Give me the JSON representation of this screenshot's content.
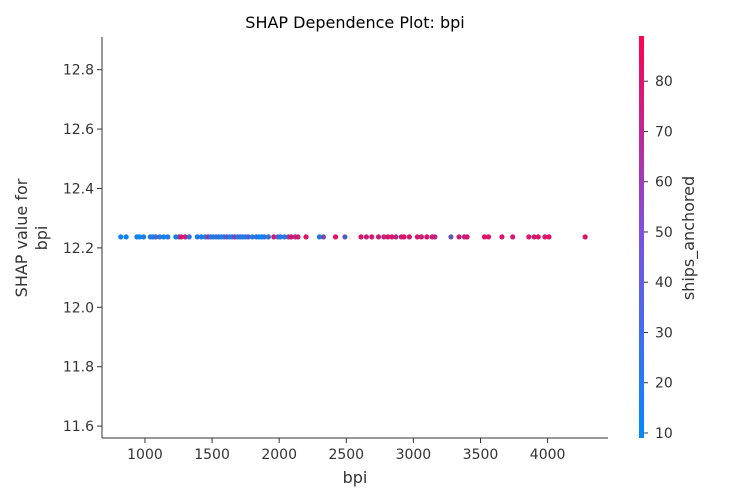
{
  "chart_data": {
    "type": "scatter",
    "title": "SHAP Dependence Plot: bpi",
    "xlabel": "bpi",
    "ylabel": [
      "SHAP value for",
      "bpi"
    ],
    "xlim": [
      680,
      4450
    ],
    "ylim": [
      11.56,
      12.91
    ],
    "xticks": [
      1000,
      1500,
      2000,
      2500,
      3000,
      3500,
      4000
    ],
    "yticks": [
      11.6,
      11.8,
      12.0,
      12.2,
      12.4,
      12.6,
      12.8
    ],
    "colorbar": {
      "label": "ships_anchored",
      "range": [
        9,
        89
      ],
      "ticks": [
        10,
        20,
        30,
        40,
        50,
        60,
        70,
        80
      ],
      "colors": [
        "#008afb",
        "#ff0052"
      ]
    },
    "grid": false,
    "y_value": 12.237,
    "points": [
      {
        "x": 820,
        "c": 14
      },
      {
        "x": 860,
        "c": 12
      },
      {
        "x": 940,
        "c": 16
      },
      {
        "x": 960,
        "c": 12
      },
      {
        "x": 990,
        "c": 18
      },
      {
        "x": 1040,
        "c": 20
      },
      {
        "x": 1060,
        "c": 16
      },
      {
        "x": 1080,
        "c": 30
      },
      {
        "x": 1110,
        "c": 22
      },
      {
        "x": 1140,
        "c": 14
      },
      {
        "x": 1170,
        "c": 18
      },
      {
        "x": 1230,
        "c": 12
      },
      {
        "x": 1255,
        "c": 35
      },
      {
        "x": 1270,
        "c": 80
      },
      {
        "x": 1300,
        "c": 70
      },
      {
        "x": 1330,
        "c": 22
      },
      {
        "x": 1390,
        "c": 16
      },
      {
        "x": 1420,
        "c": 20
      },
      {
        "x": 1450,
        "c": 14
      },
      {
        "x": 1470,
        "c": 60
      },
      {
        "x": 1490,
        "c": 20
      },
      {
        "x": 1510,
        "c": 24
      },
      {
        "x": 1530,
        "c": 18
      },
      {
        "x": 1550,
        "c": 30
      },
      {
        "x": 1570,
        "c": 12
      },
      {
        "x": 1590,
        "c": 26
      },
      {
        "x": 1610,
        "c": 40
      },
      {
        "x": 1630,
        "c": 18
      },
      {
        "x": 1650,
        "c": 22
      },
      {
        "x": 1670,
        "c": 55
      },
      {
        "x": 1690,
        "c": 16
      },
      {
        "x": 1710,
        "c": 28
      },
      {
        "x": 1730,
        "c": 20
      },
      {
        "x": 1750,
        "c": 14
      },
      {
        "x": 1770,
        "c": 35
      },
      {
        "x": 1800,
        "c": 18
      },
      {
        "x": 1830,
        "c": 24
      },
      {
        "x": 1850,
        "c": 16
      },
      {
        "x": 1870,
        "c": 12
      },
      {
        "x": 1890,
        "c": 20
      },
      {
        "x": 1920,
        "c": 26
      },
      {
        "x": 1960,
        "c": 75
      },
      {
        "x": 1990,
        "c": 30
      },
      {
        "x": 2010,
        "c": 22
      },
      {
        "x": 2040,
        "c": 18
      },
      {
        "x": 2070,
        "c": 50
      },
      {
        "x": 2090,
        "c": 80
      },
      {
        "x": 2120,
        "c": 65
      },
      {
        "x": 2140,
        "c": 72
      },
      {
        "x": 2200,
        "c": 78
      },
      {
        "x": 2300,
        "c": 20
      },
      {
        "x": 2330,
        "c": 45
      },
      {
        "x": 2420,
        "c": 82
      },
      {
        "x": 2490,
        "c": 35
      },
      {
        "x": 2610,
        "c": 78
      },
      {
        "x": 2650,
        "c": 70
      },
      {
        "x": 2690,
        "c": 75
      },
      {
        "x": 2740,
        "c": 72
      },
      {
        "x": 2780,
        "c": 68
      },
      {
        "x": 2810,
        "c": 80
      },
      {
        "x": 2840,
        "c": 76
      },
      {
        "x": 2870,
        "c": 65
      },
      {
        "x": 2910,
        "c": 70
      },
      {
        "x": 2930,
        "c": 82
      },
      {
        "x": 2970,
        "c": 74
      },
      {
        "x": 3030,
        "c": 78
      },
      {
        "x": 3060,
        "c": 66
      },
      {
        "x": 3100,
        "c": 80
      },
      {
        "x": 3140,
        "c": 72
      },
      {
        "x": 3160,
        "c": 68
      },
      {
        "x": 3280,
        "c": 40
      },
      {
        "x": 3340,
        "c": 75
      },
      {
        "x": 3380,
        "c": 65
      },
      {
        "x": 3400,
        "c": 78
      },
      {
        "x": 3530,
        "c": 82
      },
      {
        "x": 3560,
        "c": 76
      },
      {
        "x": 3660,
        "c": 80
      },
      {
        "x": 3740,
        "c": 74
      },
      {
        "x": 3860,
        "c": 78
      },
      {
        "x": 3900,
        "c": 70
      },
      {
        "x": 3930,
        "c": 82
      },
      {
        "x": 3980,
        "c": 76
      },
      {
        "x": 4010,
        "c": 84
      },
      {
        "x": 4280,
        "c": 80
      }
    ]
  }
}
